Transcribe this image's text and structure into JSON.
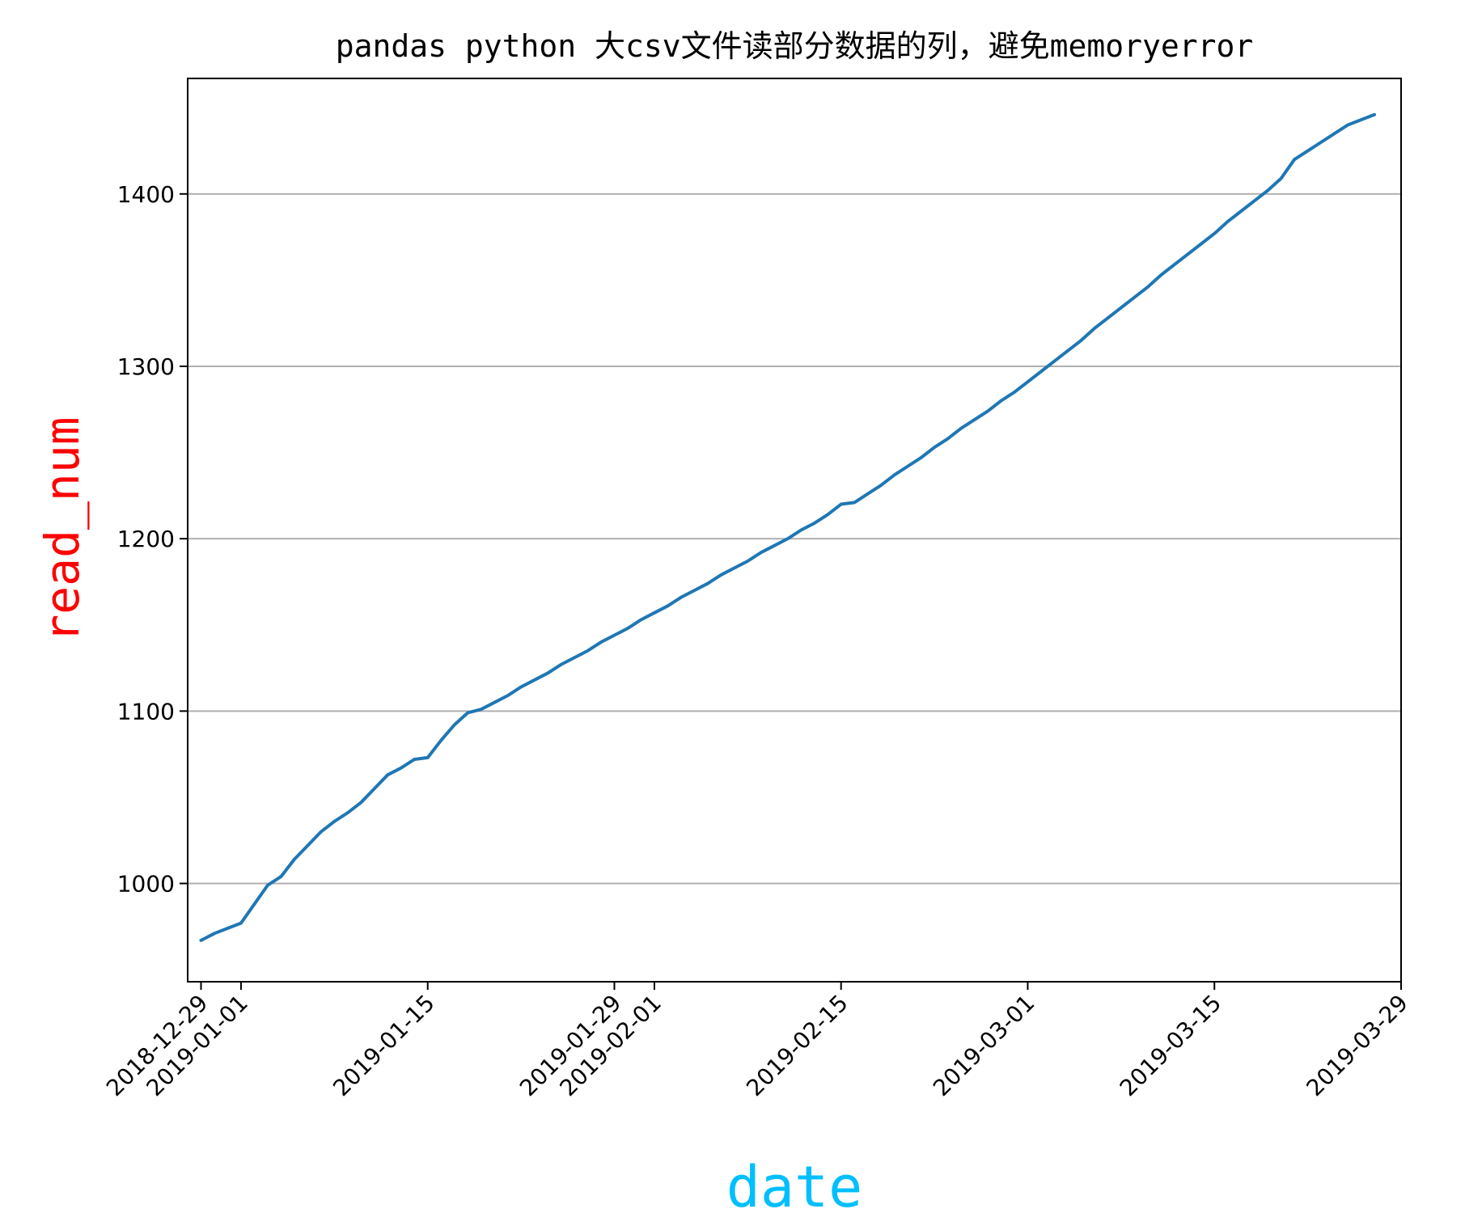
{
  "chart_data": {
    "type": "line",
    "title": "pandas python 大csv文件读部分数据的列，避免memoryerror",
    "xlabel": "date",
    "ylabel": "read_num",
    "xlabel_color": "#00bfff",
    "ylabel_color": "#ff0000",
    "line_color": "#1f77b4",
    "grid": "horizontal",
    "xlim": [
      "2018-12-28",
      "2019-03-29"
    ],
    "ylim": [
      943,
      1467
    ],
    "xticks": [
      "2018-12-29",
      "2019-01-01",
      "2019-01-15",
      "2019-01-29",
      "2019-02-01",
      "2019-02-15",
      "2019-03-01",
      "2019-03-15",
      "2019-03-29"
    ],
    "yticks": [
      1000,
      1100,
      1200,
      1300,
      1400
    ],
    "series": [
      {
        "x": [
          "2018-12-29",
          "2018-12-30",
          "2018-12-31",
          "2019-01-01",
          "2019-01-02",
          "2019-01-03",
          "2019-01-04",
          "2019-01-05",
          "2019-01-06",
          "2019-01-07",
          "2019-01-08",
          "2019-01-09",
          "2019-01-10",
          "2019-01-11",
          "2019-01-12",
          "2019-01-13",
          "2019-01-14",
          "2019-01-15",
          "2019-01-16",
          "2019-01-17",
          "2019-01-18",
          "2019-01-19",
          "2019-01-20",
          "2019-01-21",
          "2019-01-22",
          "2019-01-23",
          "2019-01-24",
          "2019-01-25",
          "2019-01-26",
          "2019-01-27",
          "2019-01-28",
          "2019-01-29",
          "2019-01-30",
          "2019-01-31",
          "2019-02-01",
          "2019-02-02",
          "2019-02-03",
          "2019-02-04",
          "2019-02-05",
          "2019-02-06",
          "2019-02-07",
          "2019-02-08",
          "2019-02-09",
          "2019-02-10",
          "2019-02-11",
          "2019-02-12",
          "2019-02-13",
          "2019-02-14",
          "2019-02-15",
          "2019-02-16",
          "2019-02-17",
          "2019-02-18",
          "2019-02-19",
          "2019-02-20",
          "2019-02-21",
          "2019-02-22",
          "2019-02-23",
          "2019-02-24",
          "2019-02-25",
          "2019-02-26",
          "2019-02-27",
          "2019-02-28",
          "2019-03-01",
          "2019-03-02",
          "2019-03-03",
          "2019-03-04",
          "2019-03-05",
          "2019-03-06",
          "2019-03-07",
          "2019-03-08",
          "2019-03-09",
          "2019-03-10",
          "2019-03-11",
          "2019-03-12",
          "2019-03-13",
          "2019-03-14",
          "2019-03-15",
          "2019-03-16",
          "2019-03-17",
          "2019-03-18",
          "2019-03-19",
          "2019-03-20",
          "2019-03-21",
          "2019-03-22",
          "2019-03-23",
          "2019-03-24",
          "2019-03-25",
          "2019-03-26",
          "2019-03-27"
        ],
        "y": [
          967,
          971,
          974,
          977,
          988,
          999,
          1004,
          1014,
          1022,
          1030,
          1036,
          1041,
          1047,
          1055,
          1063,
          1067,
          1072,
          1073,
          1083,
          1092,
          1099,
          1101,
          1105,
          1109,
          1114,
          1118,
          1122,
          1127,
          1131,
          1135,
          1140,
          1144,
          1148,
          1153,
          1157,
          1161,
          1166,
          1170,
          1174,
          1179,
          1183,
          1187,
          1192,
          1196,
          1200,
          1205,
          1209,
          1214,
          1220,
          1221,
          1226,
          1231,
          1237,
          1242,
          1247,
          1253,
          1258,
          1264,
          1269,
          1274,
          1280,
          1285,
          1291,
          1297,
          1303,
          1309,
          1315,
          1322,
          1328,
          1334,
          1340,
          1346,
          1353,
          1359,
          1365,
          1371,
          1377,
          1384,
          1390,
          1396,
          1402,
          1409,
          1420,
          1425,
          1430,
          1435,
          1440,
          1443,
          1446
        ]
      }
    ]
  }
}
